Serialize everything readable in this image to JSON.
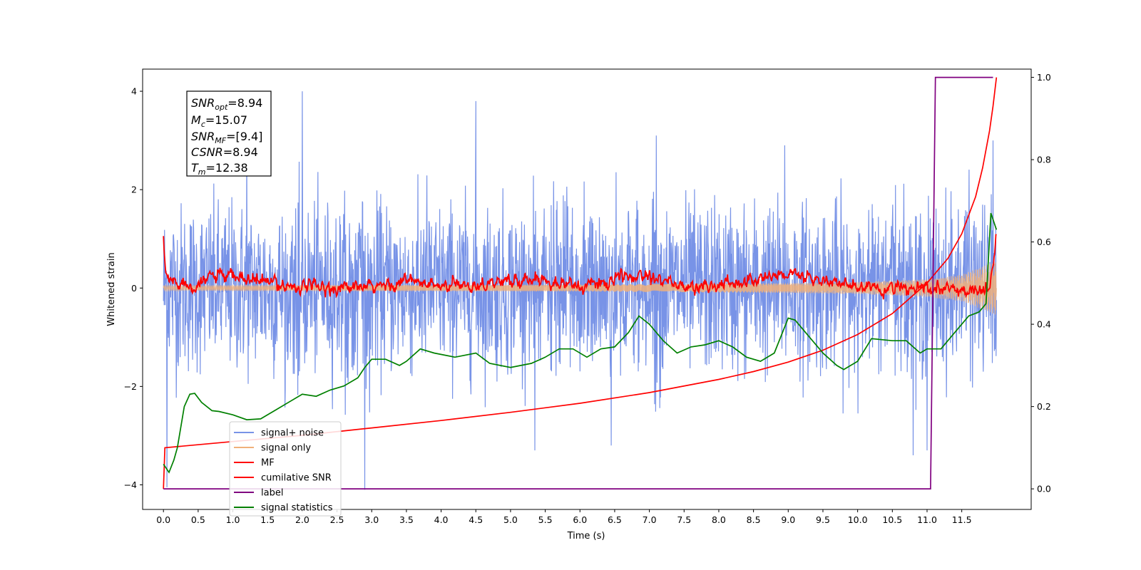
{
  "chart_data": {
    "type": "line",
    "xlabel": "Time (s)",
    "ylabel": "Whitened strain",
    "xlim": [
      -0.3,
      12.5
    ],
    "ylim": [
      -4.5,
      4.45
    ],
    "y2lim": [
      -0.05,
      1.02
    ],
    "xticks": [
      "0.0",
      "0.5",
      "1.0",
      "1.5",
      "2.0",
      "2.5",
      "3.0",
      "3.5",
      "4.0",
      "4.5",
      "5.0",
      "5.5",
      "6.0",
      "6.5",
      "7.0",
      "7.5",
      "8.0",
      "8.5",
      "9.0",
      "9.5",
      "10.0",
      "10.5",
      "11.0",
      "11.5"
    ],
    "yticks": [
      "4",
      "2",
      "0",
      "−2",
      "−4"
    ],
    "y2ticks": [
      "0.0",
      "0.2",
      "0.4",
      "0.6",
      "0.8",
      "1.0"
    ],
    "grid": false,
    "legend_position": "lower-left",
    "info_box": {
      "snr_opt": {
        "base": "SNR",
        "sub": "opt",
        "value": "=8.94"
      },
      "mc": {
        "base": "M",
        "sub": "c",
        "value": "=15.07"
      },
      "snr_mf": {
        "base": "SNR",
        "sub": "MF",
        "value": "=[9.4]"
      },
      "csnr": {
        "base": "CSNR",
        "value": "=8.94"
      },
      "tm": {
        "base": "T",
        "sub": "m",
        "value": "=12.38"
      }
    },
    "series": [
      {
        "name": "signal+ noise",
        "color": "#7893e7",
        "axis": "left",
        "kind": "noise",
        "t_range": [
          0.0,
          12.0
        ],
        "sigma": 1.0,
        "upper_envelope": [
          [
            0,
            2.4
          ],
          [
            1,
            2.3
          ],
          [
            2,
            2.6
          ],
          [
            3,
            2.3
          ],
          [
            4,
            2.4
          ],
          [
            5,
            2.4
          ],
          [
            6,
            2.4
          ],
          [
            7,
            2.6
          ],
          [
            8,
            2.4
          ],
          [
            9,
            2.5
          ],
          [
            10,
            2.5
          ],
          [
            11,
            2.5
          ],
          [
            12,
            2.6
          ]
        ],
        "lower_envelope": [
          [
            0,
            -2.4
          ],
          [
            1,
            -2.5
          ],
          [
            2,
            -2.6
          ],
          [
            3,
            -2.6
          ],
          [
            4,
            -2.6
          ],
          [
            5,
            -2.5
          ],
          [
            6,
            -2.6
          ],
          [
            7,
            -2.6
          ],
          [
            8,
            -2.6
          ],
          [
            9,
            -2.6
          ],
          [
            10,
            -2.6
          ],
          [
            11,
            -2.6
          ],
          [
            12,
            -1.8
          ]
        ],
        "spikes": [
          [
            2.0,
            4.0
          ],
          [
            2.9,
            -4.1
          ],
          [
            0.05,
            -4.05
          ],
          [
            4.5,
            3.8
          ],
          [
            7.1,
            3.1
          ],
          [
            11.0,
            -3.3
          ],
          [
            10.8,
            -3.4
          ],
          [
            5.35,
            -3.3
          ],
          [
            6.45,
            -3.2
          ],
          [
            1.2,
            3.0
          ],
          [
            8.95,
            2.9
          ],
          [
            11.95,
            3.0
          ]
        ]
      },
      {
        "name": "signal only",
        "color": "#f0b07a",
        "axis": "left",
        "kind": "chirp",
        "t_range": [
          0.0,
          12.0
        ],
        "amplitude": [
          [
            0,
            0.05
          ],
          [
            6,
            0.07
          ],
          [
            9,
            0.1
          ],
          [
            10,
            0.12
          ],
          [
            11,
            0.18
          ],
          [
            11.5,
            0.27
          ],
          [
            12,
            0.55
          ]
        ]
      },
      {
        "name": "MF",
        "color": "#ff0000",
        "axis": "left",
        "kind": "matched_filter",
        "t_range": [
          0.0,
          12.0
        ],
        "points": [
          [
            0.0,
            1.0
          ],
          [
            0.03,
            0.3
          ],
          [
            0.1,
            0.15
          ],
          [
            0.3,
            0.1
          ],
          [
            0.6,
            0.05
          ],
          [
            0.65,
            0.28
          ],
          [
            0.9,
            0.2
          ],
          [
            1.0,
            0.22
          ],
          [
            2.0,
            0.02
          ],
          [
            3.0,
            0.0
          ],
          [
            3.5,
            0.15
          ],
          [
            4.0,
            0.02
          ],
          [
            5.5,
            0.2
          ],
          [
            6.0,
            0.02
          ],
          [
            7.0,
            0.3
          ],
          [
            7.5,
            0.0
          ],
          [
            8.0,
            0.05
          ],
          [
            9.0,
            0.3
          ],
          [
            10.0,
            0.0
          ],
          [
            11.0,
            -0.03
          ],
          [
            11.9,
            -0.05
          ],
          [
            12.0,
            0.95
          ]
        ],
        "noise_sigma": 0.06
      },
      {
        "name": "cumilative SNR",
        "color": "#ff0000",
        "axis": "right",
        "kind": "curve",
        "points": [
          [
            0.0,
            0.0
          ],
          [
            0.02,
            0.1
          ],
          [
            1,
            0.115
          ],
          [
            2,
            0.13
          ],
          [
            3,
            0.148
          ],
          [
            4,
            0.166
          ],
          [
            5,
            0.186
          ],
          [
            6,
            0.208
          ],
          [
            7,
            0.234
          ],
          [
            8,
            0.266
          ],
          [
            8.5,
            0.285
          ],
          [
            9,
            0.308
          ],
          [
            9.5,
            0.337
          ],
          [
            10,
            0.375
          ],
          [
            10.5,
            0.426
          ],
          [
            11,
            0.5
          ],
          [
            11.3,
            0.56
          ],
          [
            11.5,
            0.62
          ],
          [
            11.7,
            0.71
          ],
          [
            11.8,
            0.78
          ],
          [
            11.9,
            0.87
          ],
          [
            11.95,
            0.93
          ],
          [
            12.0,
            1.0
          ]
        ]
      },
      {
        "name": "label",
        "color": "#800080",
        "axis": "right",
        "kind": "step",
        "points": [
          [
            0.0,
            0.0
          ],
          [
            11.05,
            0.0
          ],
          [
            11.12,
            1.0
          ],
          [
            11.95,
            1.0
          ]
        ]
      },
      {
        "name": "signal statistics",
        "color": "#008000",
        "axis": "right",
        "kind": "curve",
        "points": [
          [
            0.0,
            0.06
          ],
          [
            0.08,
            0.04
          ],
          [
            0.15,
            0.07
          ],
          [
            0.2,
            0.1
          ],
          [
            0.3,
            0.2
          ],
          [
            0.38,
            0.23
          ],
          [
            0.45,
            0.232
          ],
          [
            0.55,
            0.21
          ],
          [
            0.7,
            0.19
          ],
          [
            0.8,
            0.188
          ],
          [
            1.0,
            0.18
          ],
          [
            1.2,
            0.168
          ],
          [
            1.4,
            0.17
          ],
          [
            1.6,
            0.19
          ],
          [
            1.8,
            0.21
          ],
          [
            2.0,
            0.23
          ],
          [
            2.2,
            0.225
          ],
          [
            2.4,
            0.24
          ],
          [
            2.6,
            0.25
          ],
          [
            2.8,
            0.27
          ],
          [
            2.9,
            0.295
          ],
          [
            3.0,
            0.315
          ],
          [
            3.2,
            0.315
          ],
          [
            3.4,
            0.3
          ],
          [
            3.5,
            0.31
          ],
          [
            3.7,
            0.34
          ],
          [
            3.9,
            0.33
          ],
          [
            4.2,
            0.32
          ],
          [
            4.5,
            0.33
          ],
          [
            4.7,
            0.305
          ],
          [
            5.0,
            0.295
          ],
          [
            5.3,
            0.305
          ],
          [
            5.5,
            0.32
          ],
          [
            5.7,
            0.34
          ],
          [
            5.9,
            0.34
          ],
          [
            6.1,
            0.32
          ],
          [
            6.3,
            0.34
          ],
          [
            6.5,
            0.345
          ],
          [
            6.7,
            0.38
          ],
          [
            6.85,
            0.42
          ],
          [
            7.0,
            0.4
          ],
          [
            7.2,
            0.36
          ],
          [
            7.4,
            0.33
          ],
          [
            7.6,
            0.345
          ],
          [
            7.8,
            0.35
          ],
          [
            8.0,
            0.36
          ],
          [
            8.2,
            0.345
          ],
          [
            8.4,
            0.32
          ],
          [
            8.6,
            0.31
          ],
          [
            8.8,
            0.33
          ],
          [
            9.0,
            0.415
          ],
          [
            9.1,
            0.41
          ],
          [
            9.3,
            0.37
          ],
          [
            9.5,
            0.33
          ],
          [
            9.7,
            0.3
          ],
          [
            9.8,
            0.29
          ],
          [
            10.0,
            0.31
          ],
          [
            10.2,
            0.365
          ],
          [
            10.5,
            0.36
          ],
          [
            10.7,
            0.36
          ],
          [
            10.9,
            0.33
          ],
          [
            11.0,
            0.34
          ],
          [
            11.2,
            0.34
          ],
          [
            11.4,
            0.38
          ],
          [
            11.6,
            0.42
          ],
          [
            11.75,
            0.43
          ],
          [
            11.85,
            0.45
          ],
          [
            11.92,
            0.67
          ],
          [
            12.0,
            0.63
          ]
        ]
      }
    ]
  }
}
